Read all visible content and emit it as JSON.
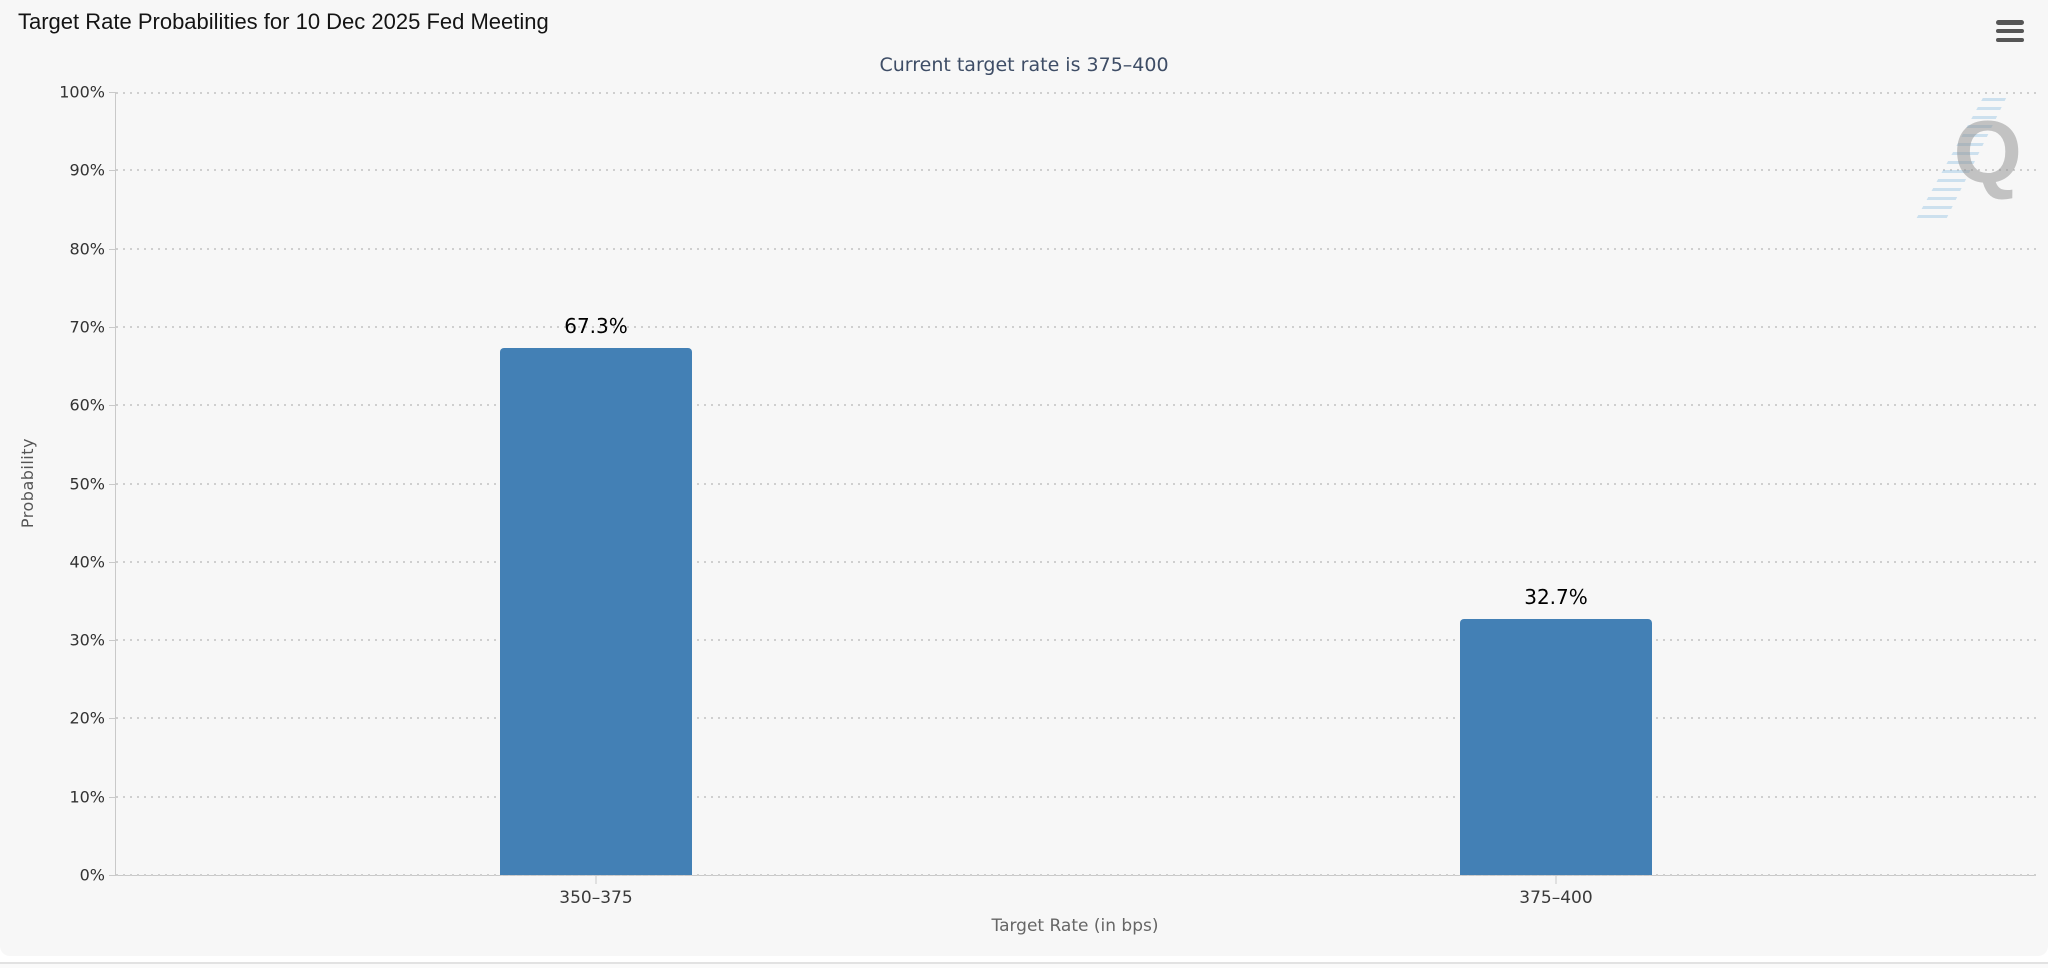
{
  "header": {
    "title": "Target Rate Probabilities for 10 Dec 2025 Fed Meeting",
    "menu_icon": "hamburger-icon"
  },
  "chart_data": {
    "type": "bar",
    "title": "Target Rate Probabilities for 10 Dec 2025 Fed Meeting",
    "subtitle": "Current target rate is 375–400",
    "categories": [
      "350–375",
      "375–400"
    ],
    "values": [
      67.3,
      32.7
    ],
    "value_labels": [
      "67.3%",
      "32.7%"
    ],
    "xlabel": "Target Rate (in bps)",
    "ylabel": "Probability",
    "ylim": [
      0,
      100
    ],
    "ytick_step": 10,
    "ytick_labels": [
      "0%",
      "10%",
      "20%",
      "30%",
      "40%",
      "50%",
      "60%",
      "70%",
      "80%",
      "90%",
      "100%"
    ],
    "grid": "horizontal-dotted",
    "legend": "none",
    "bar_color": "#4380b5",
    "watermark_letter": "Q"
  },
  "colors": {
    "background": "#f7f7f7",
    "bar": "#4380b5",
    "subtitle_text": "#3e4d66",
    "axis_text": "#333333",
    "axis_title_text": "#666666",
    "gridline": "#cfcfcf",
    "menu_icon": "#565656",
    "watermark_gray": "#8f8f8f",
    "watermark_blue": "#8cbee1"
  }
}
